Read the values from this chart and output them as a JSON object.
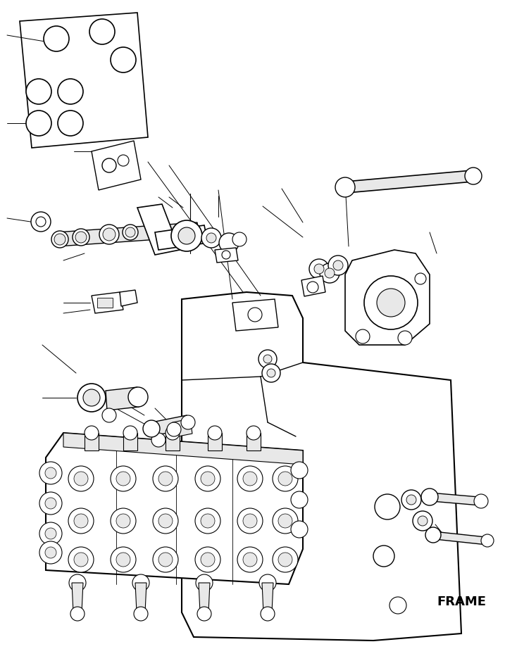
{
  "background_color": "#ffffff",
  "frame_label": "FRAME",
  "line_color": "#000000",
  "line_width": 0.8,
  "figsize": [
    7.17,
    9.49
  ],
  "dpi": 100,
  "outline_color": "#000000",
  "fill_color": "#ffffff",
  "shade_color": "#e8e8e8"
}
